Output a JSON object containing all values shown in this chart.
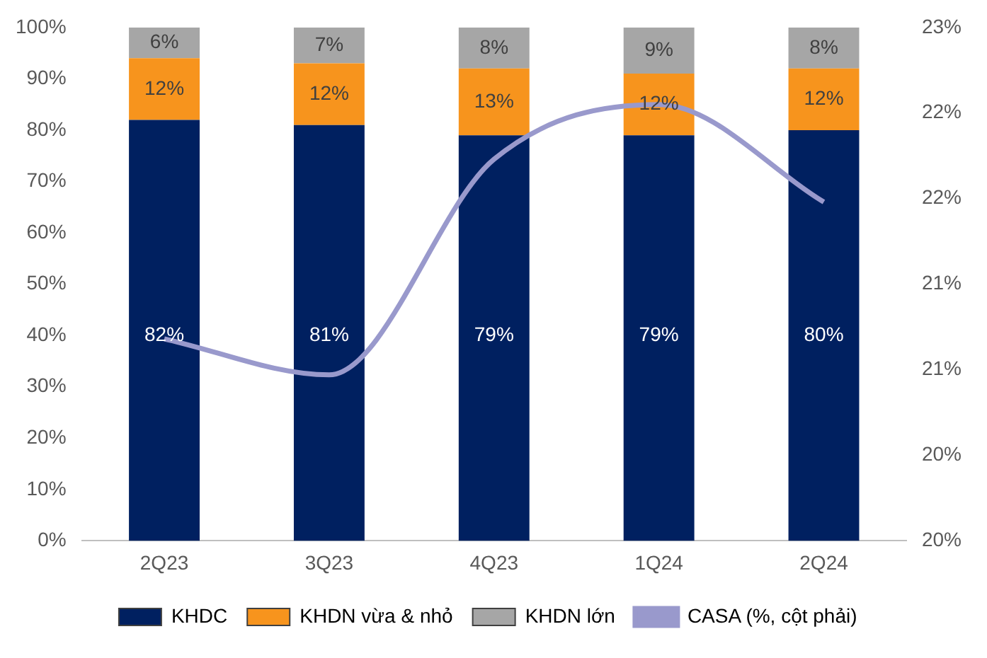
{
  "chart_data": {
    "type": "bar",
    "stacked": true,
    "categories": [
      "2Q23",
      "3Q23",
      "4Q23",
      "1Q24",
      "2Q24"
    ],
    "series": [
      {
        "name": "KHDC",
        "color": "#002060",
        "values": [
          82,
          81,
          79,
          79,
          80
        ],
        "value_labels": [
          "82%",
          "81%",
          "79%",
          "79%",
          "80%"
        ]
      },
      {
        "name": "KHDN vừa & nhỏ",
        "color": "#f7941d",
        "values": [
          12,
          12,
          13,
          12,
          12
        ],
        "value_labels": [
          "12%",
          "12%",
          "13%",
          "12%",
          "12%"
        ]
      },
      {
        "name": "KHDN lớn",
        "color": "#a6a6a6",
        "values": [
          6,
          7,
          8,
          9,
          8
        ],
        "value_labels": [
          "6%",
          "7%",
          "8%",
          "9%",
          "8%"
        ]
      },
      {
        "name": "CASA (%, cột phải)",
        "type": "line",
        "axis": "y2",
        "color": "#9999cc",
        "values": [
          21.18,
          20.97,
          22.23,
          22.55,
          21.98
        ]
      }
    ],
    "ylim": [
      0,
      100
    ],
    "yticks": [
      {
        "value": 0,
        "label": "0%"
      },
      {
        "value": 10,
        "label": "10%"
      },
      {
        "value": 20,
        "label": "20%"
      },
      {
        "value": 30,
        "label": "30%"
      },
      {
        "value": 40,
        "label": "40%"
      },
      {
        "value": 50,
        "label": "50%"
      },
      {
        "value": 60,
        "label": "60%"
      },
      {
        "value": 70,
        "label": "70%"
      },
      {
        "value": 80,
        "label": "80%"
      },
      {
        "value": 90,
        "label": "90%"
      },
      {
        "value": 100,
        "label": "100%"
      }
    ],
    "y2lim": [
      20,
      23
    ],
    "y2ticks": [
      {
        "value": 20,
        "label": "20%"
      },
      {
        "value": 20.5,
        "label": "20%"
      },
      {
        "value": 21,
        "label": "21%"
      },
      {
        "value": 21.5,
        "label": "21%"
      },
      {
        "value": 22,
        "label": "22%"
      },
      {
        "value": 22.5,
        "label": "22%"
      },
      {
        "value": 23,
        "label": "23%"
      }
    ],
    "grid": false,
    "legend": "bottom",
    "marker": "none"
  }
}
